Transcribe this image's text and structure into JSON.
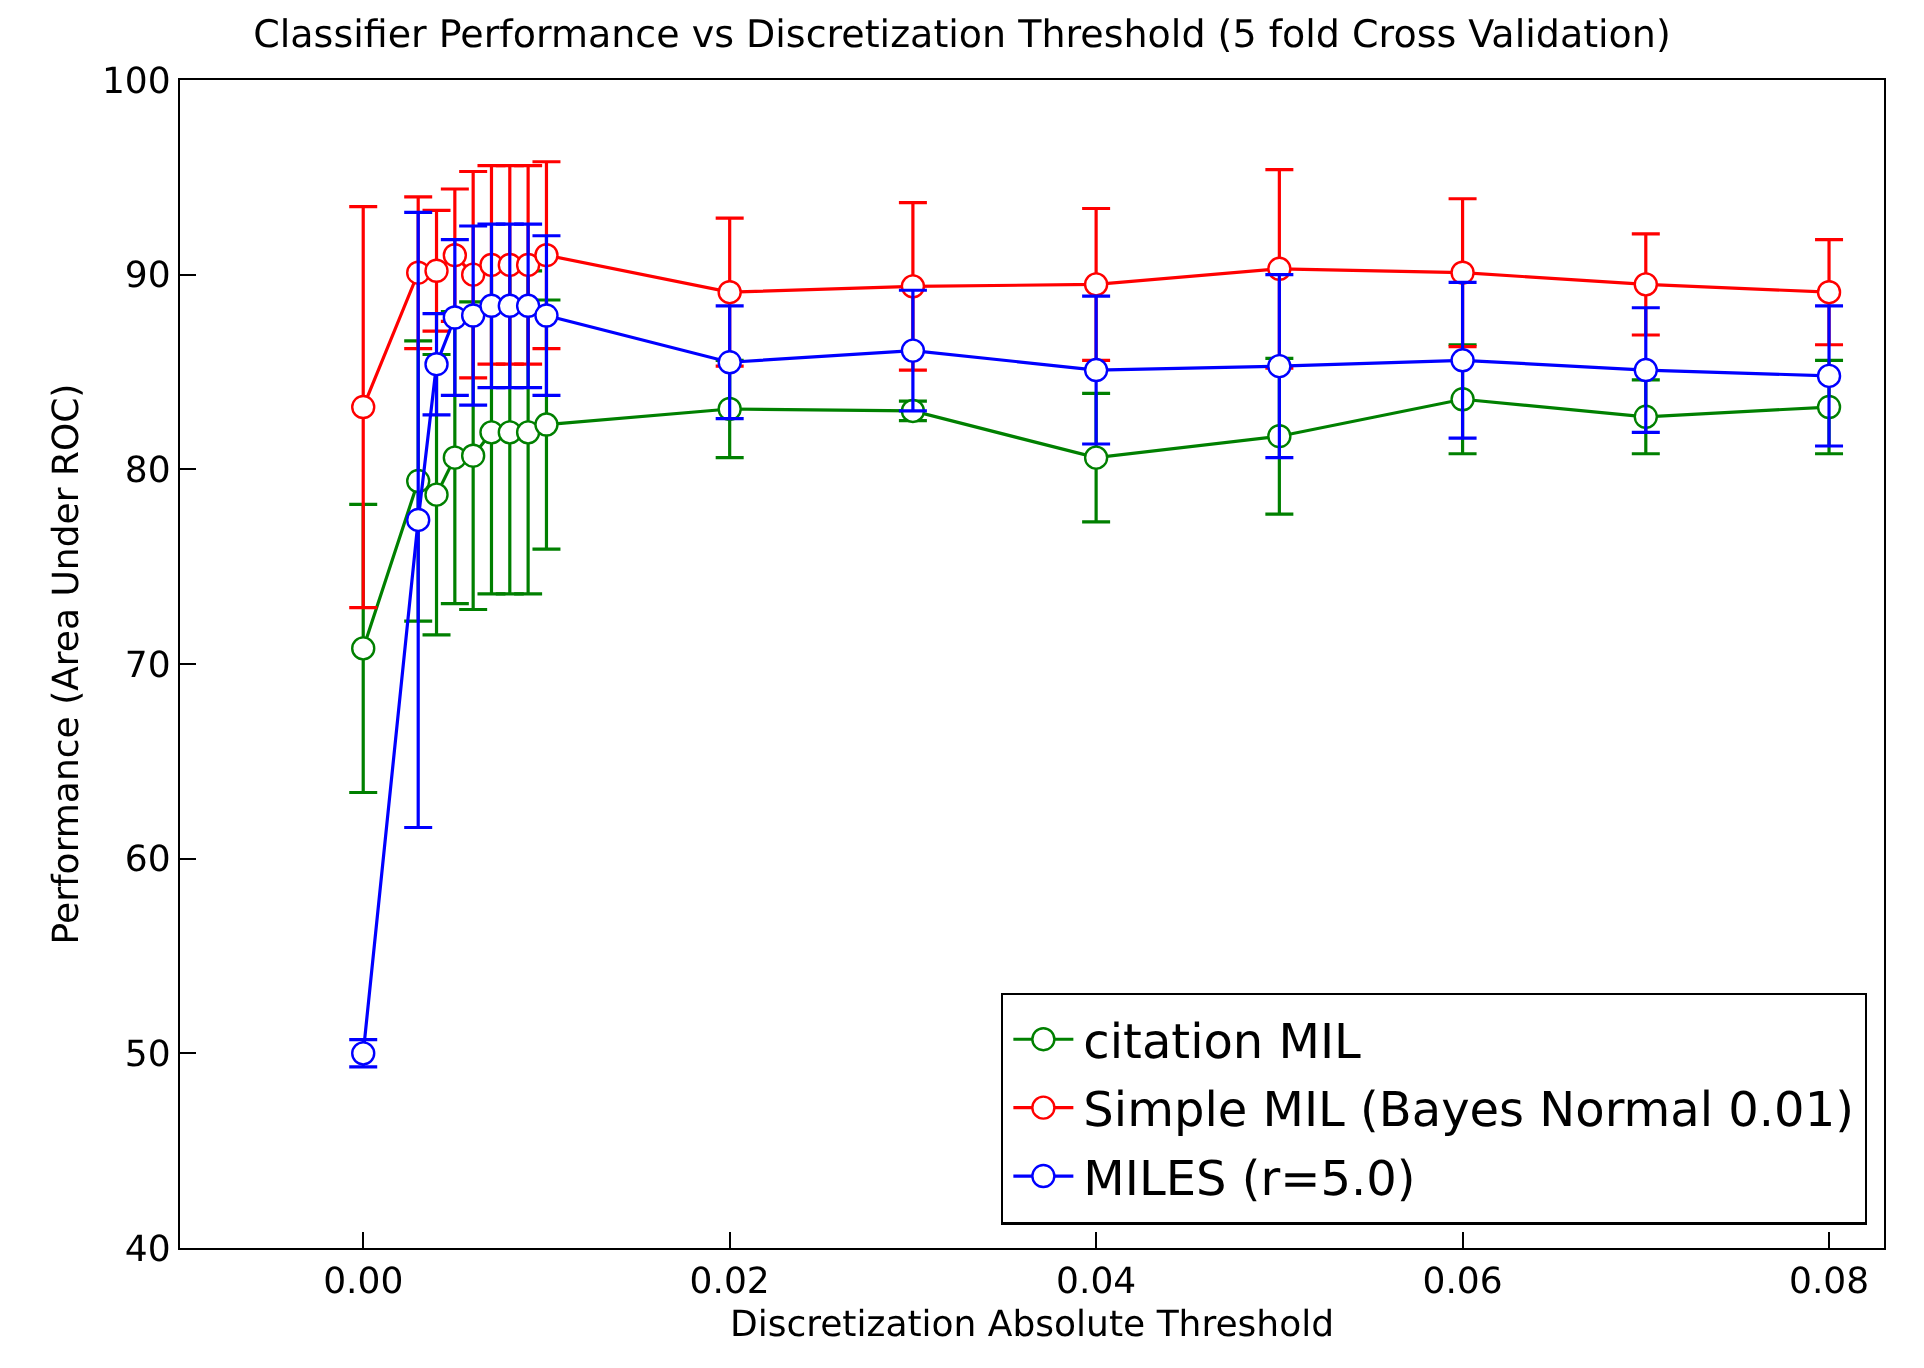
{
  "chart_data": {
    "type": "line",
    "title": "Classifier Performance vs Discretization Threshold (5 fold Cross Validation)",
    "xlabel": "Discretization Absolute Threshold",
    "ylabel": "Performance (Area Under ROC)",
    "x": [
      0,
      0.003,
      0.004,
      0.005,
      0.006,
      0.007,
      0.008,
      0.009,
      0.01,
      0.02,
      0.03,
      0.04,
      0.05,
      0.06,
      0.07,
      0.08
    ],
    "series": [
      {
        "name": "citation MIL",
        "color": "#008000",
        "values": [
          70.8,
          79.4,
          78.7,
          80.6,
          80.7,
          81.9,
          81.9,
          81.9,
          82.3,
          83.1,
          83.0,
          80.6,
          81.7,
          83.6,
          82.7,
          83.2
        ],
        "errors": [
          7.4,
          7.2,
          7.2,
          7.5,
          7.9,
          8.3,
          8.3,
          8.3,
          6.4,
          2.5,
          0.5,
          3.3,
          4.0,
          2.8,
          1.9,
          2.4
        ]
      },
      {
        "name": "Simple MIL (Bayes Normal 0.01)",
        "color": "#ff0000",
        "values": [
          83.2,
          90.1,
          90.2,
          91.0,
          90.0,
          90.5,
          90.5,
          90.5,
          91.0,
          89.1,
          89.4,
          89.5,
          90.3,
          90.1,
          89.5,
          89.1
        ],
        "errors": [
          10.3,
          3.9,
          3.1,
          3.4,
          5.3,
          5.1,
          5.1,
          5.1,
          4.8,
          3.8,
          4.3,
          3.9,
          5.1,
          3.8,
          2.6,
          2.7
        ]
      },
      {
        "name": "MILES (r=5.0)",
        "color": "#0000ff",
        "values": [
          50.0,
          77.4,
          85.4,
          87.8,
          87.9,
          88.4,
          88.4,
          88.4,
          87.9,
          85.5,
          86.1,
          85.1,
          85.3,
          85.6,
          85.1,
          84.8
        ],
        "errors": [
          0.7,
          15.8,
          2.6,
          4.0,
          4.6,
          4.2,
          4.2,
          4.2,
          4.1,
          2.9,
          3.1,
          3.8,
          4.7,
          4.0,
          3.2,
          3.6
        ]
      }
    ],
    "xlim": [
      -0.01,
      0.083
    ],
    "xticks": [
      {
        "value": 0,
        "label": "0.00"
      },
      {
        "value": 0.02,
        "label": "0.02"
      },
      {
        "value": 0.04,
        "label": "0.04"
      },
      {
        "value": 0.06,
        "label": "0.06"
      },
      {
        "value": 0.08,
        "label": "0.08"
      }
    ],
    "ylim": [
      40,
      100
    ],
    "yticks": [
      40,
      50,
      60,
      70,
      80,
      90,
      100
    ],
    "legend": "bottom right",
    "marker": "circle",
    "line_style": "solid"
  }
}
